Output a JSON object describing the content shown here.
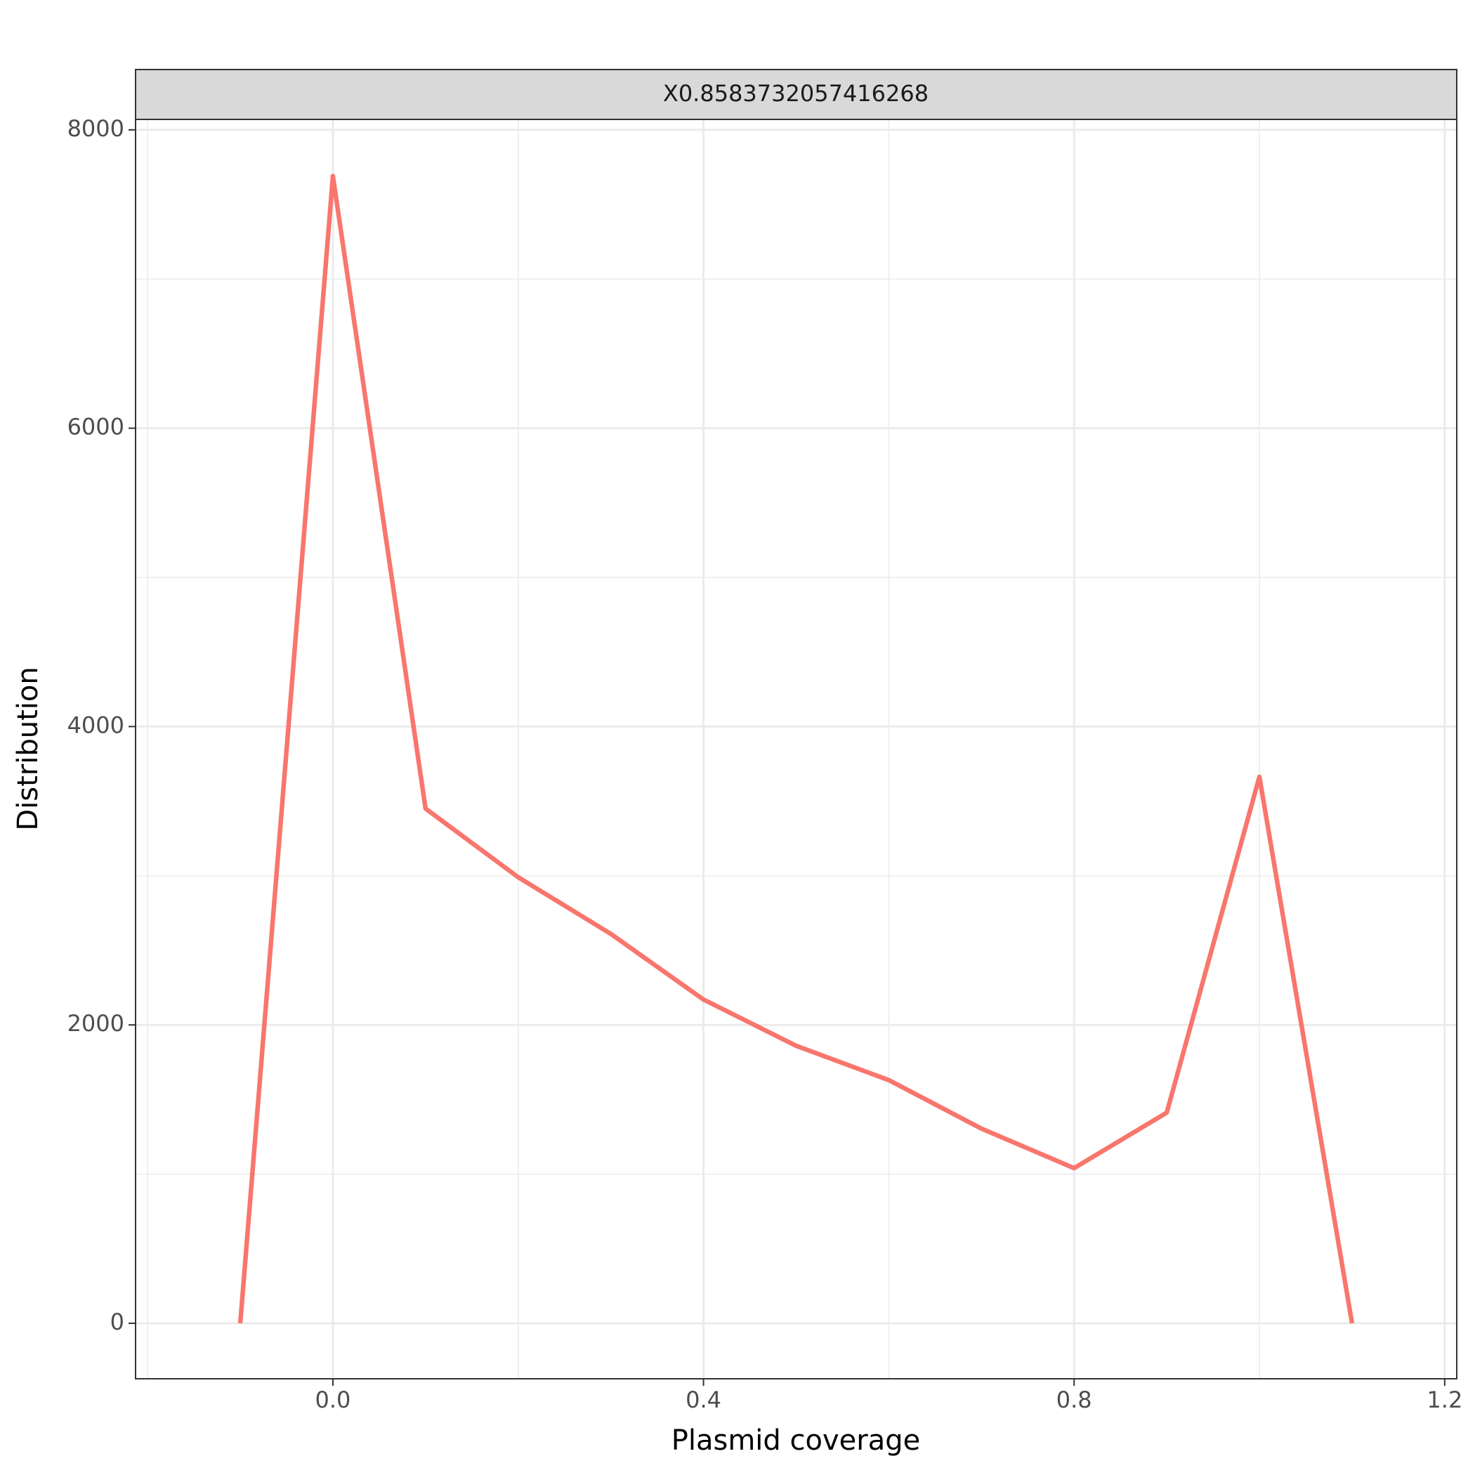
{
  "chart_data": {
    "type": "line",
    "strip_label": "X0.8583732057416268",
    "xlabel": "Plasmid coverage",
    "ylabel": "Distribution",
    "x": [
      -0.1,
      0.0,
      0.1,
      0.2,
      0.3,
      0.4,
      0.5,
      0.6,
      0.7,
      0.8,
      0.9,
      1.0,
      1.1
    ],
    "series": [
      {
        "color": "#f8766d",
        "values": [
          0,
          7690,
          3450,
          2990,
          2610,
          2170,
          1860,
          1630,
          1305,
          1040,
          1412,
          3663,
          0
        ]
      }
    ],
    "xlim": [
      -0.213,
      1.213
    ],
    "ylim": [
      -372,
      8070
    ],
    "xticks": [
      {
        "value": 0,
        "label": "0.0"
      },
      0.4,
      0.8,
      1.2
    ],
    "yticks": [
      0,
      2000,
      4000,
      6000,
      8000
    ],
    "xminor": [
      -0.2,
      0.2,
      0.6,
      1.0
    ],
    "yminor": [
      1000,
      3000,
      5000,
      7000
    ],
    "grid": true
  }
}
